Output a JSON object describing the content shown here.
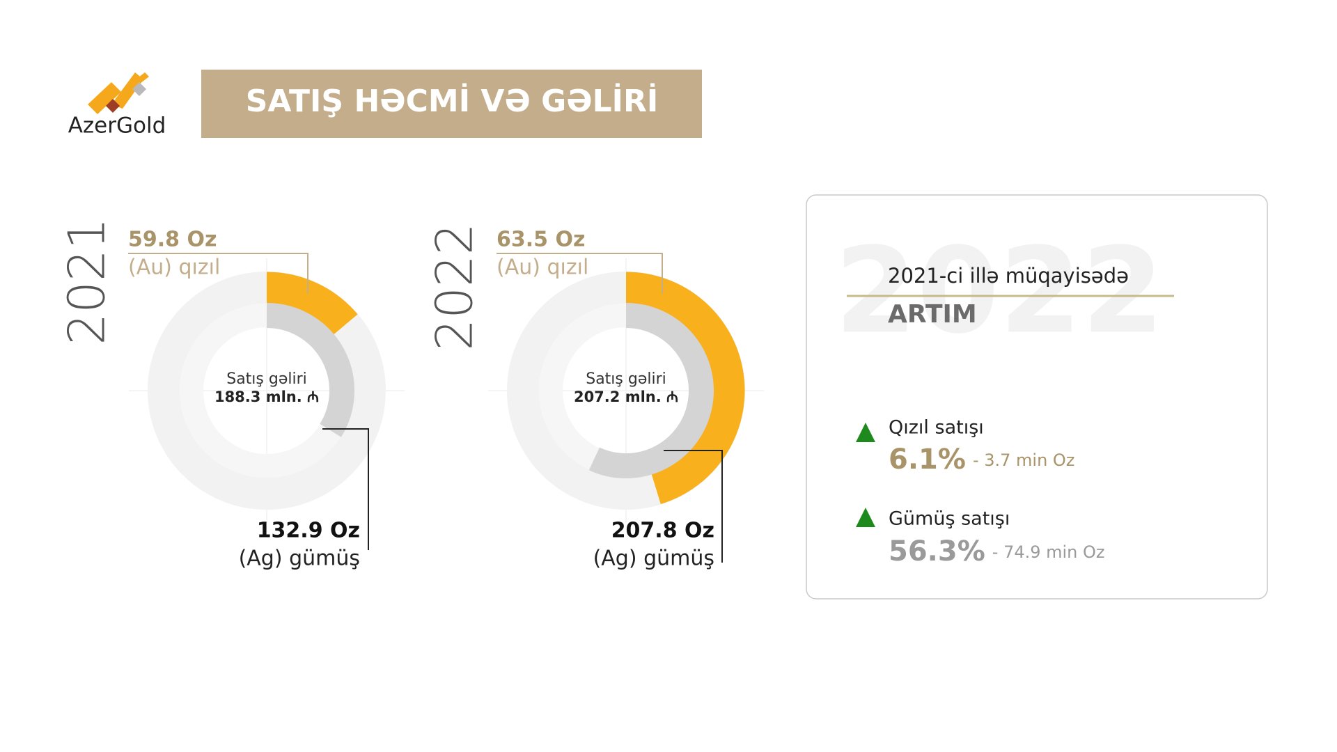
{
  "header": {
    "logo": "AzerGold",
    "title": "SATIŞ HƏCMİ VƏ GƏLİRİ"
  },
  "panels": [
    {
      "year": "2021",
      "gold": {
        "amount": "59.8 Oz",
        "label": "(Au) qızıl"
      },
      "center": {
        "label": "Satış gəliri",
        "value": "188.3 mln. ₼"
      },
      "silver": {
        "amount": "132.9 Oz",
        "label": "(Ag) gümüş"
      }
    },
    {
      "year": "2022",
      "gold": {
        "amount": "63.5 Oz",
        "label": "(Au) qızıl"
      },
      "center": {
        "label": "Satış gəliri",
        "value": "207.2 mln. ₼"
      },
      "silver": {
        "amount": "207.8 Oz",
        "label": "(Ag) gümüş"
      }
    }
  ],
  "comparison": {
    "watermark": "2022",
    "heading": "2021-ci illə müqayisədə",
    "subheading": "ARTIM",
    "items": [
      {
        "label": "Qızıl satışı",
        "percent": "6.1%",
        "detail": "- 3.7 min Oz"
      },
      {
        "label": "Gümüş satışı",
        "percent": "56.3%",
        "detail": "- 74.9 min Oz"
      }
    ]
  }
}
